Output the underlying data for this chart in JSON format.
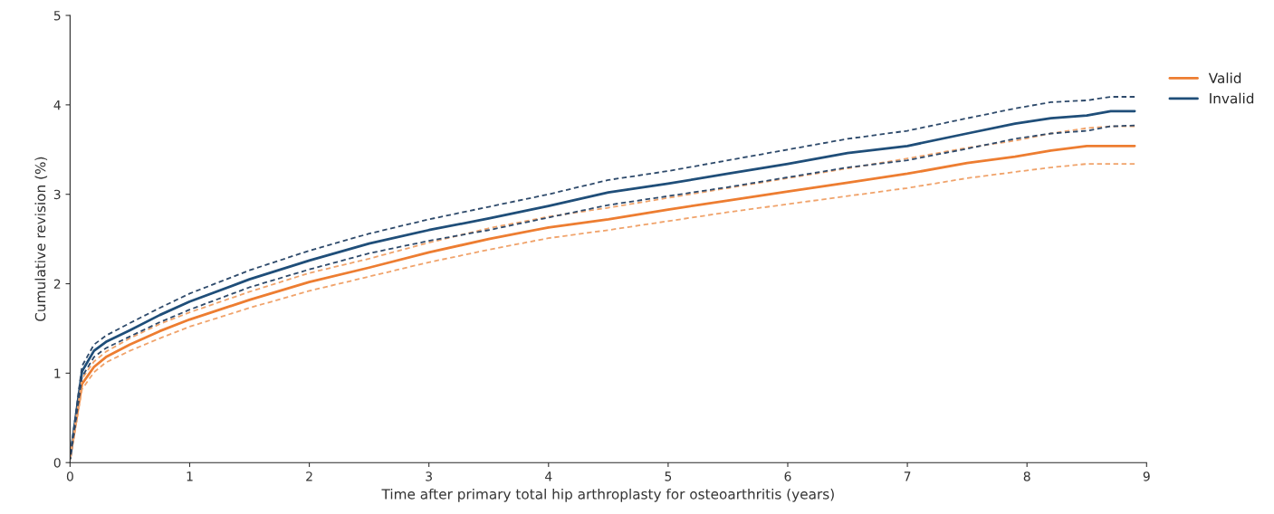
{
  "chart_data": {
    "type": "line",
    "xlabel": "Time after primary total hip arthroplasty for osteoarthritis (years)",
    "ylabel": "Cumulative revision (%)",
    "x": [
      0,
      0.1,
      0.2,
      0.3,
      0.5,
      0.75,
      1,
      1.5,
      2,
      2.5,
      3,
      3.5,
      4,
      4.5,
      5,
      5.5,
      6,
      6.5,
      7,
      7.5,
      7.9,
      8.2,
      8.5,
      8.7,
      8.9
    ],
    "series": [
      {
        "name": "Valid",
        "color": "#ed7d31",
        "values": [
          0.05,
          0.88,
          1.07,
          1.18,
          1.32,
          1.47,
          1.6,
          1.82,
          2.02,
          2.18,
          2.35,
          2.5,
          2.63,
          2.72,
          2.83,
          2.93,
          3.03,
          3.13,
          3.23,
          3.35,
          3.42,
          3.49,
          3.54,
          3.54,
          3.54
        ]
      },
      {
        "name": "Invalid",
        "color": "#1f4e79",
        "values": [
          0.05,
          1.02,
          1.25,
          1.35,
          1.48,
          1.65,
          1.8,
          2.05,
          2.26,
          2.45,
          2.6,
          2.73,
          2.87,
          3.02,
          3.12,
          3.23,
          3.34,
          3.46,
          3.54,
          3.68,
          3.79,
          3.85,
          3.88,
          3.93,
          3.93
        ]
      },
      {
        "color": "#f0a36b",
        "line_style": "dashed",
        "values": [
          0.06,
          0.94,
          1.13,
          1.24,
          1.39,
          1.55,
          1.68,
          1.91,
          2.12,
          2.28,
          2.46,
          2.62,
          2.75,
          2.85,
          2.96,
          3.07,
          3.18,
          3.29,
          3.4,
          3.52,
          3.6,
          3.68,
          3.74,
          3.76,
          3.76
        ]
      },
      {
        "color": "#f0a36b",
        "line_style": "dashed",
        "values": [
          0.04,
          0.82,
          1.01,
          1.12,
          1.25,
          1.39,
          1.52,
          1.73,
          1.92,
          2.08,
          2.24,
          2.38,
          2.51,
          2.6,
          2.7,
          2.8,
          2.89,
          2.98,
          3.07,
          3.18,
          3.25,
          3.3,
          3.34,
          3.34,
          3.34
        ]
      },
      {
        "color": "#2e4a6b",
        "line_style": "dashed",
        "values": [
          0.06,
          1.08,
          1.32,
          1.42,
          1.56,
          1.73,
          1.89,
          2.15,
          2.37,
          2.56,
          2.72,
          2.86,
          3.0,
          3.16,
          3.26,
          3.38,
          3.5,
          3.62,
          3.71,
          3.85,
          3.96,
          4.03,
          4.05,
          4.09,
          4.09
        ]
      },
      {
        "color": "#2e4a6b",
        "line_style": "dashed",
        "values": [
          0.04,
          0.96,
          1.18,
          1.28,
          1.41,
          1.57,
          1.71,
          1.96,
          2.16,
          2.34,
          2.48,
          2.6,
          2.74,
          2.88,
          2.98,
          3.08,
          3.19,
          3.3,
          3.38,
          3.51,
          3.62,
          3.68,
          3.71,
          3.76,
          3.77
        ]
      }
    ],
    "xlim": [
      0,
      9
    ],
    "xticks": [
      0,
      1,
      2,
      3,
      4,
      5,
      6,
      7,
      8,
      9
    ],
    "ylim": [
      0,
      5
    ],
    "yticks": [
      0,
      1,
      2,
      3,
      4,
      5
    ],
    "grid": false,
    "legend": "right",
    "line_style": "solid",
    "marker": "none"
  }
}
